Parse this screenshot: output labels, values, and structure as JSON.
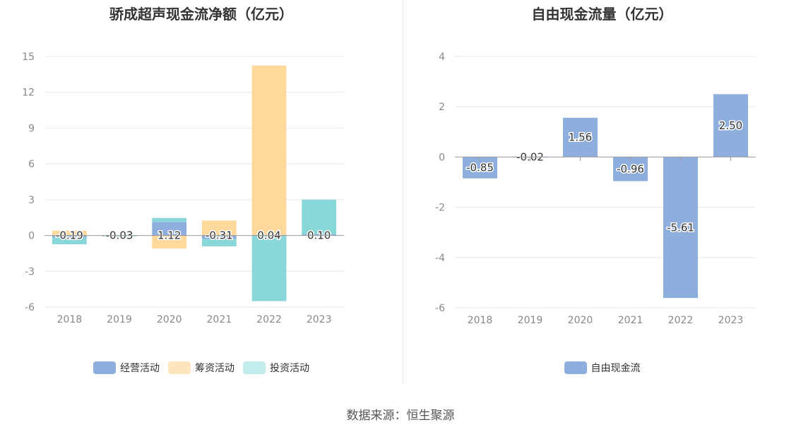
{
  "footer": "数据来源：恒生聚源",
  "colors": {
    "operating": "#8eaedd",
    "financing": "#ffd99b",
    "investing": "#88d7d9",
    "free_cash_flow": "#8eaedd"
  },
  "chart_data": [
    {
      "type": "bar",
      "title": "骄成超声现金流净额（亿元）",
      "stacked": true,
      "categories": [
        "2018",
        "2019",
        "2020",
        "2021",
        "2022",
        "2023"
      ],
      "ylim": [
        -6,
        15
      ],
      "yticks": [
        15,
        12,
        9,
        6,
        3,
        0,
        -3,
        -6
      ],
      "ytick_labels": [
        "15",
        "12",
        "9",
        "6",
        "3",
        "0",
        "-3",
        "-6"
      ],
      "series": [
        {
          "name": "经营活动",
          "values": [
            -0.19,
            -0.03,
            1.12,
            -0.31,
            0.04,
            0.1
          ]
        },
        {
          "name": "筹资活动",
          "values": [
            0.4,
            0.02,
            -1.1,
            1.25,
            14.2,
            0.0
          ]
        },
        {
          "name": "投资活动",
          "values": [
            -0.55,
            -0.02,
            0.35,
            -0.6,
            -5.5,
            2.9
          ]
        }
      ],
      "data_labels": [
        "-0.19",
        "-0.03",
        "1.12",
        "-0.31",
        "0.04",
        "0.10"
      ],
      "legend_position": "bottom",
      "grid": true
    },
    {
      "type": "bar",
      "title": "自由现金流量（亿元）",
      "categories": [
        "2018",
        "2019",
        "2020",
        "2021",
        "2022",
        "2023"
      ],
      "ylim": [
        -6,
        4
      ],
      "yticks": [
        4,
        2,
        0,
        -2,
        -4,
        -6
      ],
      "ytick_labels": [
        "4",
        "2",
        "0",
        "-2",
        "-4",
        "-6"
      ],
      "series": [
        {
          "name": "自由现金流",
          "values": [
            -0.85,
            -0.02,
            1.56,
            -0.96,
            -5.61,
            2.5
          ]
        }
      ],
      "data_labels": [
        "-0.85",
        "-0.02",
        "1.56",
        "-0.96",
        "-5.61",
        "2.50"
      ],
      "legend_position": "bottom",
      "grid": true
    }
  ]
}
